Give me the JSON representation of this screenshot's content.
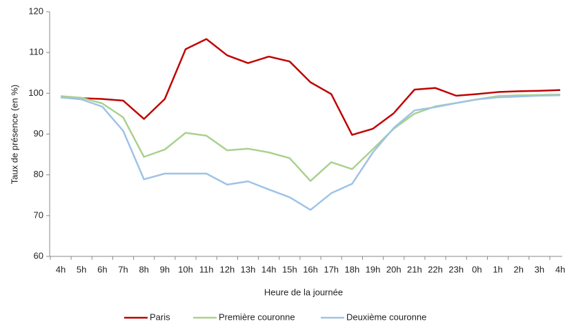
{
  "chart_data": {
    "type": "line",
    "y_label": "Taux de présence (en %)",
    "x_label": "Heure de la journée",
    "categories": [
      "4h",
      "5h",
      "6h",
      "7h",
      "8h",
      "9h",
      "10h",
      "11h",
      "12h",
      "13h",
      "14h",
      "15h",
      "16h",
      "17h",
      "18h",
      "19h",
      "20h",
      "21h",
      "22h",
      "23h",
      "0h",
      "1h",
      "2h",
      "3h",
      "4h"
    ],
    "series": [
      {
        "name": "Paris",
        "color": "#c00000",
        "values": [
          99,
          98.8,
          98.6,
          98.2,
          93.7,
          98.6,
          110.8,
          113.3,
          109.3,
          107.4,
          109,
          107.8,
          102.7,
          99.8,
          89.8,
          91.3,
          95.1,
          100.9,
          101.3,
          99.4,
          99.8,
          100.3,
          100.5,
          100.6,
          100.8
        ]
      },
      {
        "name": "Première couronne",
        "color": "#a9d18e",
        "values": [
          99.3,
          98.9,
          97.5,
          94.1,
          84.4,
          86.2,
          90.3,
          89.6,
          86,
          86.4,
          85.5,
          84.1,
          78.5,
          83.1,
          81.4,
          86.3,
          91.3,
          95,
          96.8,
          97.6,
          98.5,
          99.3,
          99.5,
          99.6,
          99.7
        ]
      },
      {
        "name": "Deuxième couronne",
        "color": "#9dc3e6",
        "values": [
          99,
          98.5,
          96.7,
          90.8,
          78.9,
          80.3,
          80.3,
          80.3,
          77.6,
          78.4,
          76.4,
          74.5,
          71.4,
          75.5,
          77.8,
          85.5,
          91.5,
          95.8,
          96.6,
          97.6,
          98.5,
          99,
          99.2,
          99.4,
          99.5
        ]
      }
    ],
    "ylim": [
      60,
      120
    ],
    "yticks": [
      60,
      70,
      80,
      90,
      100,
      110,
      120
    ],
    "grid": false,
    "legend": "bottom"
  }
}
